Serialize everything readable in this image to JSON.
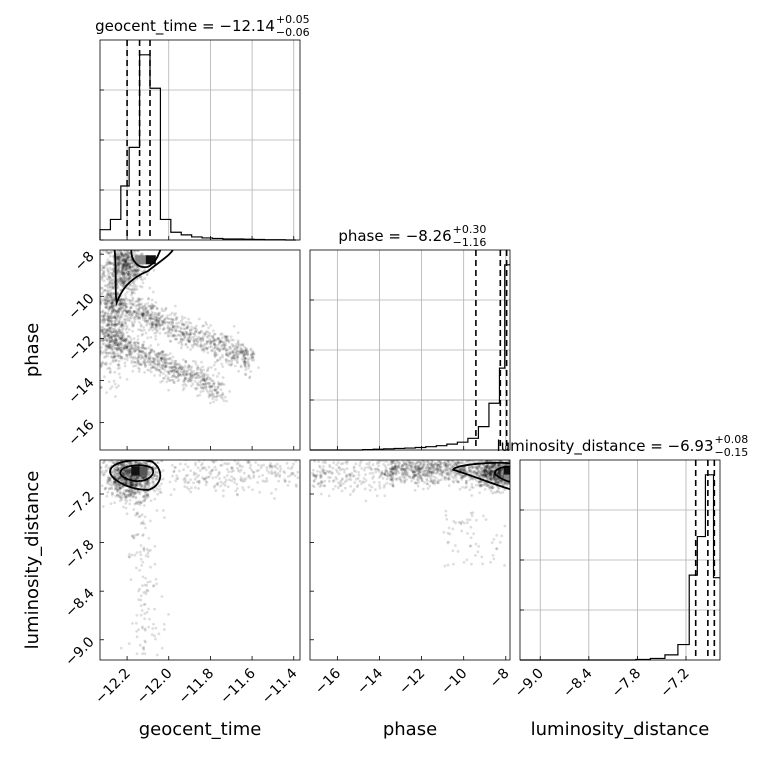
{
  "chart_data": {
    "type": "corner",
    "parameters": [
      {
        "name": "geocent_time",
        "label": "geocent_time",
        "range": [
          -12.33,
          -11.37
        ],
        "ticks": [
          -12.2,
          -12.0,
          -11.8,
          -11.6,
          -11.4
        ],
        "tick_labels": [
          "−12.2",
          "−12.0",
          "−11.8",
          "−11.6",
          "−11.4"
        ],
        "title_prefix": "geocent_time = ",
        "median": "−12.14",
        "upper": "+0.05",
        "lower": "−0.06",
        "quantiles": [
          -12.2,
          -12.14,
          -12.09
        ],
        "hist_edges": [
          -12.33,
          -12.28,
          -12.23,
          -12.19,
          -12.14,
          -12.09,
          -12.04,
          -11.99,
          -11.94,
          -11.89,
          -11.84,
          -11.79,
          -11.74,
          -11.69,
          -11.64,
          -11.59,
          -11.54,
          -11.49,
          -11.44,
          -11.39
        ],
        "hist_counts": [
          0.04,
          0.08,
          0.21,
          0.36,
          0.72,
          0.59,
          0.08,
          0.03,
          0.02,
          0.012,
          0.008,
          0.006,
          0.004,
          0.004,
          0.003,
          0.002,
          0.001,
          0.001,
          0.0
        ]
      },
      {
        "name": "phase",
        "label": "phase",
        "range": [
          -17.3,
          -7.8
        ],
        "ticks": [
          -16,
          -14,
          -12,
          -10,
          -8
        ],
        "tick_labels": [
          "−16",
          "−14",
          "−12",
          "−10",
          "−8"
        ],
        "title_prefix": "phase = ",
        "median": "−8.26",
        "upper": "+0.30",
        "lower": "−1.16",
        "quantiles": [
          -9.42,
          -8.26,
          -7.96
        ],
        "hist_edges": [
          -17.3,
          -16.8,
          -16.3,
          -15.8,
          -15.3,
          -14.8,
          -14.3,
          -13.8,
          -13.3,
          -12.8,
          -12.3,
          -11.8,
          -11.3,
          -10.8,
          -10.3,
          -9.8,
          -9.3,
          -8.8,
          -8.3,
          -8.05,
          -7.8
        ],
        "hist_counts": [
          0.0,
          0.0,
          0.0,
          0.0,
          0.0,
          0.002,
          0.004,
          0.006,
          0.008,
          0.01,
          0.013,
          0.017,
          0.022,
          0.03,
          0.04,
          0.06,
          0.12,
          0.24,
          0.42,
          0.95
        ]
      },
      {
        "name": "luminosity_distance",
        "label": "luminosity_distance",
        "range": [
          -9.25,
          -6.78
        ],
        "ticks": [
          -9.0,
          -8.4,
          -7.8,
          -7.2
        ],
        "tick_labels": [
          "−9.0",
          "−8.4",
          "−7.8",
          "−7.2"
        ],
        "title_prefix": "luminosity_distance = ",
        "median": "−6.93",
        "upper": "+0.08",
        "lower": "−0.15",
        "quantiles": [
          -7.08,
          -6.93,
          -6.85
        ],
        "hist_edges": [
          -9.25,
          -9.0,
          -8.75,
          -8.5,
          -8.25,
          -8.0,
          -7.82,
          -7.64,
          -7.46,
          -7.3,
          -7.16,
          -7.06,
          -6.96,
          -6.86,
          -6.78
        ],
        "hist_counts": [
          0.0,
          0.0,
          0.0,
          0.0,
          0.0,
          0.0,
          0.002,
          0.006,
          0.02,
          0.06,
          0.33,
          0.48,
          0.72,
          0.32
        ]
      }
    ],
    "density_ytick_count": 4,
    "grid": true
  }
}
